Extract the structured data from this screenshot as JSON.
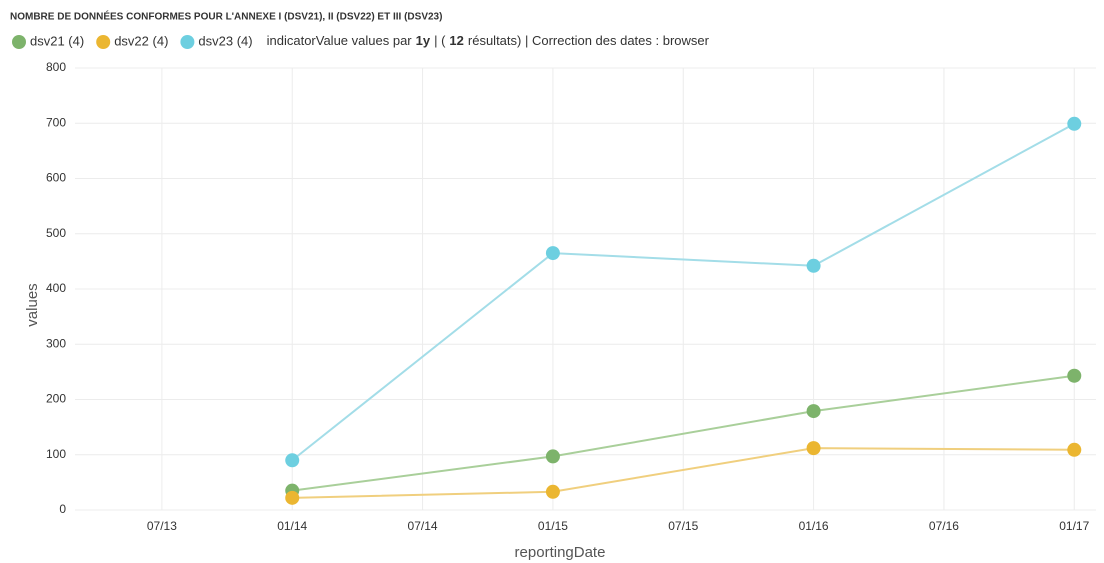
{
  "chart_data": {
    "type": "line",
    "title": "NOMBRE DE DONNÉES CONFORMES POUR L'ANNEXE I (DSV21), II (DSV22) ET III (DSV23)",
    "info": [
      "indicatorValue values par",
      "1y",
      "| (",
      "12",
      "résultats) | Correction des dates : browser"
    ],
    "x_label": "reportingDate",
    "y_label": "values",
    "x": [
      "2014-01",
      "2015-01",
      "2016-01",
      "2017-01"
    ],
    "series": [
      {
        "name": "dsv21 (4)",
        "color": "#7db36b",
        "line_color": "#a9cf9a",
        "values": [
          35,
          97,
          179,
          243
        ]
      },
      {
        "name": "dsv22 (4)",
        "color": "#ebb631",
        "line_color": "#f0cf7e",
        "values": [
          22,
          33,
          112,
          109
        ]
      },
      {
        "name": "dsv23 (4)",
        "color": "#6dcfe0",
        "line_color": "#a3dde8",
        "values": [
          90,
          465,
          442,
          699
        ]
      }
    ],
    "xlim": [
      "2013-03",
      "2017-02"
    ],
    "xticks": [
      {
        "value": "2013-07",
        "label": "07/13"
      },
      {
        "value": "2014-01",
        "label": "01/14"
      },
      {
        "value": "2014-07",
        "label": "07/14"
      },
      {
        "value": "2015-01",
        "label": "01/15"
      },
      {
        "value": "2015-07",
        "label": "07/15"
      },
      {
        "value": "2016-01",
        "label": "01/16"
      },
      {
        "value": "2016-07",
        "label": "07/16"
      },
      {
        "value": "2017-01",
        "label": "01/17"
      }
    ],
    "ylim": [
      0,
      800
    ],
    "yticks": [
      0,
      100,
      200,
      300,
      400,
      500,
      600,
      700,
      800
    ],
    "grid": true
  }
}
